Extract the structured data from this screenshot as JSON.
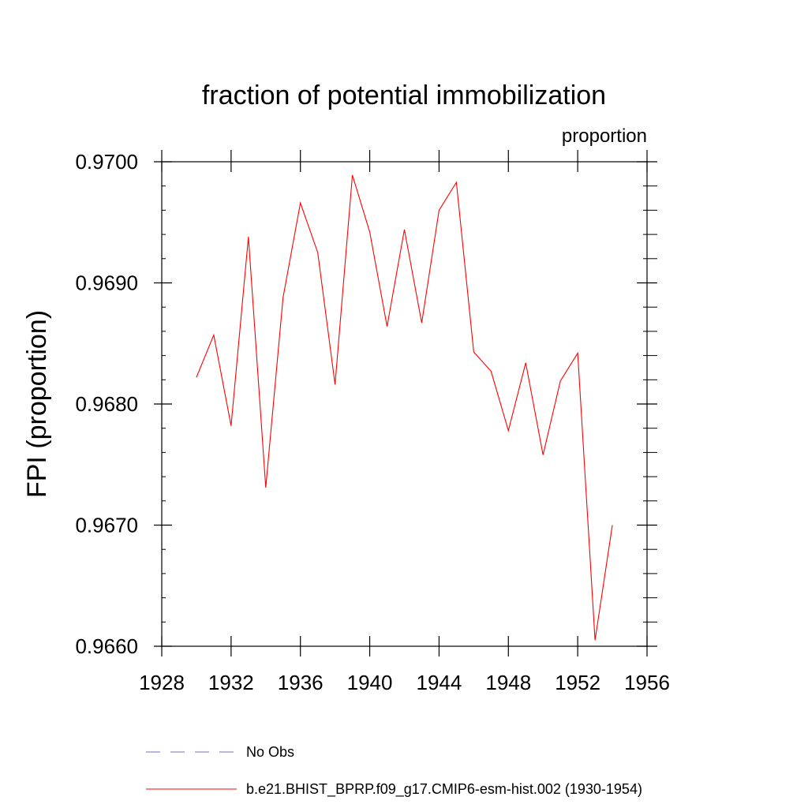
{
  "chart_data": {
    "type": "line",
    "title": "fraction of potential immobilization",
    "units_label": "proportion",
    "ylabel": "FPI  (proportion)",
    "xlim": [
      1928,
      1956
    ],
    "ylim": [
      0.966,
      0.97
    ],
    "x_ticks": [
      1928,
      1932,
      1936,
      1940,
      1944,
      1948,
      1952,
      1956
    ],
    "x_tick_labels": [
      "1928",
      "1932",
      "1936",
      "1940",
      "1944",
      "1948",
      "1952",
      "1956"
    ],
    "y_ticks": [
      0.966,
      0.967,
      0.968,
      0.969,
      0.97
    ],
    "y_tick_labels": [
      "0.9660",
      "0.9670",
      "0.9680",
      "0.9690",
      "0.9700"
    ],
    "grid": false,
    "legend_position": "bottom",
    "series": [
      {
        "name": "b.e21.BHIST_BPRP.f09_g17.CMIP6-esm-hist.002 (1930-1954)",
        "color": "#ff0000",
        "style": "solid",
        "x": [
          1930,
          1931,
          1932,
          1933,
          1934,
          1935,
          1936,
          1937,
          1938,
          1939,
          1940,
          1941,
          1942,
          1943,
          1944,
          1945,
          1946,
          1947,
          1948,
          1949,
          1950,
          1951,
          1952,
          1953,
          1954
        ],
        "y": [
          0.96822,
          0.96857,
          0.96782,
          0.96938,
          0.96731,
          0.96888,
          0.96966,
          0.96925,
          0.96816,
          0.96989,
          0.96942,
          0.96864,
          0.96944,
          0.96867,
          0.9696,
          0.96983,
          0.96843,
          0.96827,
          0.96778,
          0.96834,
          0.96758,
          0.96819,
          0.96842,
          0.96605,
          0.967
        ]
      }
    ],
    "legend": [
      {
        "label": "No Obs",
        "color": "#7b68c8",
        "style": "dashed"
      },
      {
        "label": "b.e21.BHIST_BPRP.f09_g17.CMIP6-esm-hist.002 (1930-1954)",
        "color": "#ff0000",
        "style": "solid"
      }
    ]
  }
}
